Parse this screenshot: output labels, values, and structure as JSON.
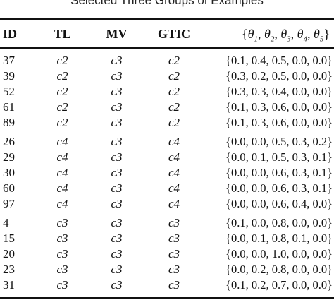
{
  "caption": "Selected Three Groups of Examples",
  "headers": {
    "id": "ID",
    "tl": "TL",
    "mv": "MV",
    "gtic": "GTIC",
    "theta": "{θ1, θ2, θ3, θ4, θ5}"
  },
  "groups": [
    {
      "rows": [
        {
          "id": "37",
          "tl": "c2",
          "mv": "c3",
          "gtic": "c2",
          "theta": "{0.1, 0.4, 0.5, 0.0, 0.0}"
        },
        {
          "id": "39",
          "tl": "c2",
          "mv": "c3",
          "gtic": "c2",
          "theta": "{0.3, 0.2, 0.5, 0.0, 0.0}"
        },
        {
          "id": "52",
          "tl": "c2",
          "mv": "c3",
          "gtic": "c2",
          "theta": "{0.3, 0.3, 0.4, 0.0, 0.0}"
        },
        {
          "id": "61",
          "tl": "c2",
          "mv": "c3",
          "gtic": "c2",
          "theta": "{0.1, 0.3, 0.6, 0.0, 0.0}"
        },
        {
          "id": "89",
          "tl": "c2",
          "mv": "c3",
          "gtic": "c2",
          "theta": "{0.1, 0.3, 0.6, 0.0, 0.0}"
        }
      ]
    },
    {
      "rows": [
        {
          "id": "26",
          "tl": "c4",
          "mv": "c3",
          "gtic": "c4",
          "theta": "{0.0, 0.0, 0.5, 0.3, 0.2}"
        },
        {
          "id": "29",
          "tl": "c4",
          "mv": "c3",
          "gtic": "c4",
          "theta": "{0.0, 0.1, 0.5, 0.3, 0.1}"
        },
        {
          "id": "30",
          "tl": "c4",
          "mv": "c3",
          "gtic": "c4",
          "theta": "{0.0, 0.0, 0.6, 0.3, 0.1}"
        },
        {
          "id": "60",
          "tl": "c4",
          "mv": "c3",
          "gtic": "c4",
          "theta": "{0.0, 0.0, 0.6, 0.3, 0.1}"
        },
        {
          "id": "97",
          "tl": "c4",
          "mv": "c3",
          "gtic": "c4",
          "theta": "{0.0, 0.0, 0.6, 0.4, 0.0}"
        }
      ]
    },
    {
      "rows": [
        {
          "id": "4",
          "tl": "c3",
          "mv": "c3",
          "gtic": "c3",
          "theta": "{0.1, 0.0, 0.8, 0.0, 0.0}"
        },
        {
          "id": "15",
          "tl": "c3",
          "mv": "c3",
          "gtic": "c3",
          "theta": "{0.0, 0.1, 0.8, 0.1, 0.0}"
        },
        {
          "id": "20",
          "tl": "c3",
          "mv": "c3",
          "gtic": "c3",
          "theta": "{0.0, 0.0, 1.0, 0.0, 0.0}"
        },
        {
          "id": "23",
          "tl": "c3",
          "mv": "c3",
          "gtic": "c3",
          "theta": "{0.0, 0.2, 0.8, 0.0, 0.0}"
        },
        {
          "id": "31",
          "tl": "c3",
          "mv": "c3",
          "gtic": "c3",
          "theta": "{0.1, 0.2, 0.7, 0.0, 0.0}"
        }
      ]
    }
  ]
}
